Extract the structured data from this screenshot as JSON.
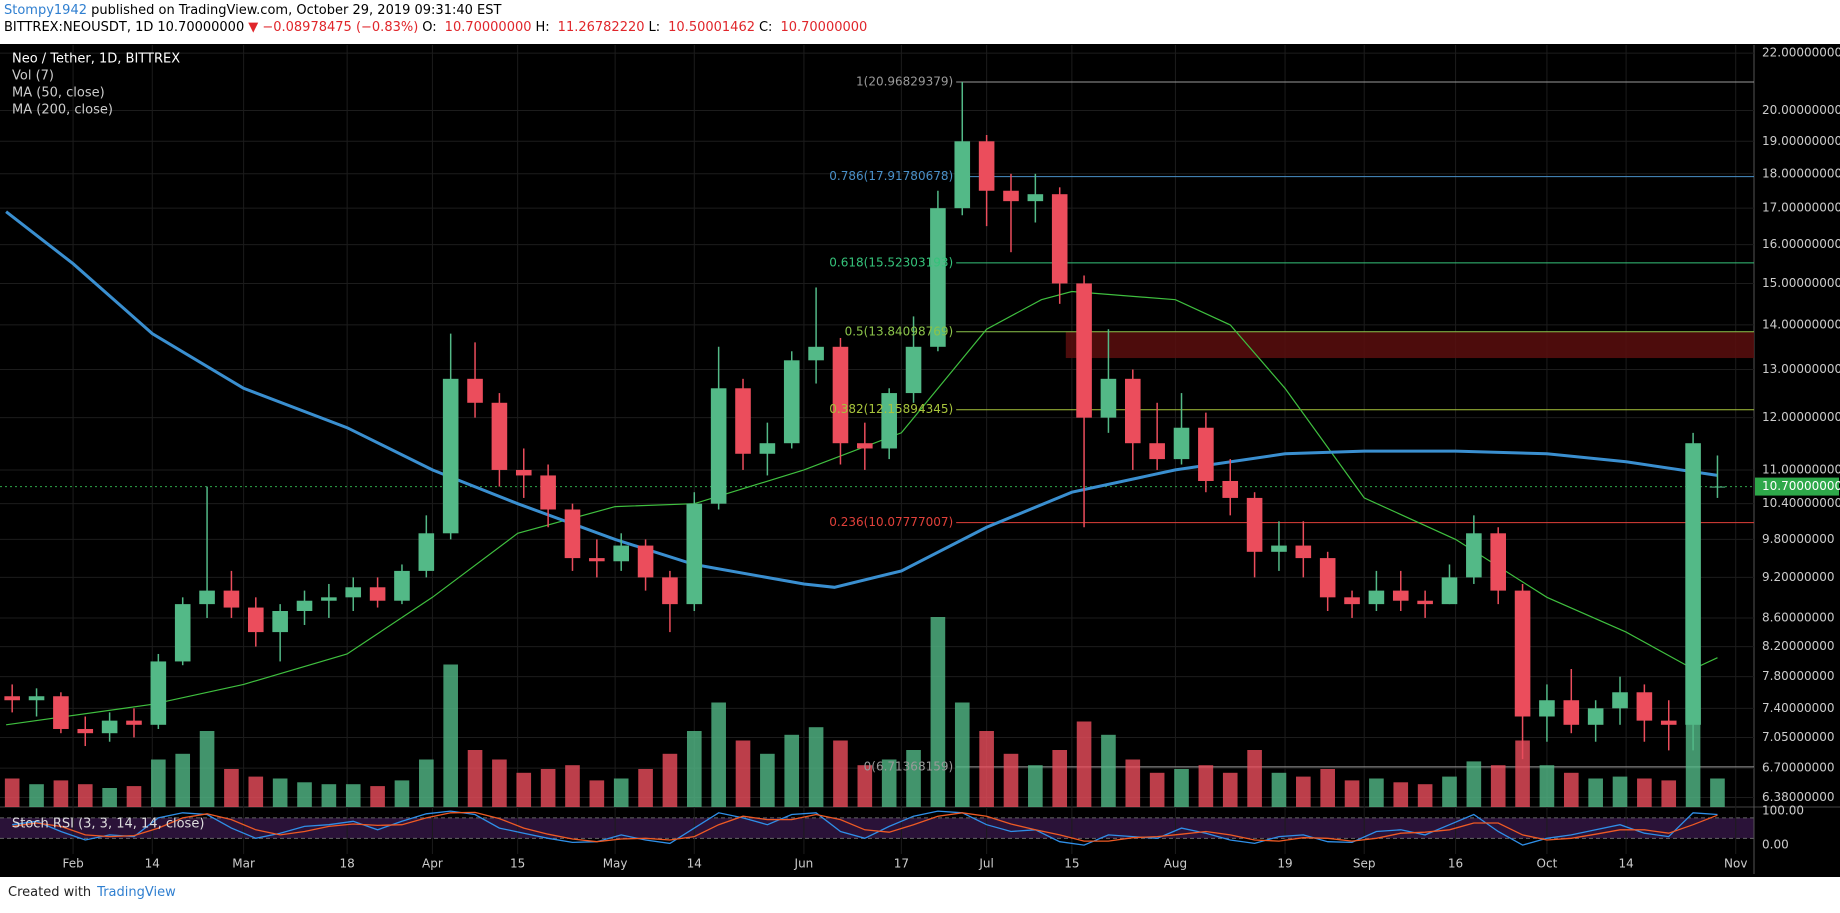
{
  "header": {
    "user": "Stompy1942",
    "published": " published on TradingView.com, October 29, 2019 09:31:40 EST",
    "line2": [
      {
        "text": "BITTREX:NEOUSDT, 1D",
        "color": "#000000"
      },
      {
        "text": "10.70000000",
        "color": "#000000"
      },
      {
        "text": "▼ −0.08978475 (−0.83%)",
        "color": "#e0262b"
      },
      {
        "text": "O:",
        "color": "#000000"
      },
      {
        "text": "10.70000000",
        "color": "#e0262b"
      },
      {
        "text": "H:",
        "color": "#000000"
      },
      {
        "text": "11.26782220",
        "color": "#e0262b"
      },
      {
        "text": "L:",
        "color": "#000000"
      },
      {
        "text": "10.50001462",
        "color": "#e0262b"
      },
      {
        "text": "C:",
        "color": "#000000"
      },
      {
        "text": "10.70000000",
        "color": "#e0262b"
      }
    ]
  },
  "chart_data": {
    "type": "candlestick",
    "legend": [
      "Neo / Tether, 1D, BITTREX",
      "Vol (7)",
      "MA (50, close)",
      "MA (200, close)"
    ],
    "log_scale": true,
    "grid": true,
    "xlim": [
      "2019-01-20",
      "2019-11-04"
    ],
    "ylim": [
      6.28,
      22.3
    ],
    "xticks": [
      {
        "value": "2019-02-01",
        "label": "Feb"
      },
      {
        "value": "2019-02-14",
        "label": "14"
      },
      {
        "value": "2019-03-01",
        "label": "Mar"
      },
      {
        "value": "2019-03-18",
        "label": "18"
      },
      {
        "value": "2019-04-01",
        "label": "Apr"
      },
      {
        "value": "2019-04-15",
        "label": "15"
      },
      {
        "value": "2019-05-01",
        "label": "May"
      },
      {
        "value": "2019-05-14",
        "label": "14"
      },
      {
        "value": "2019-06-01",
        "label": "Jun"
      },
      {
        "value": "2019-06-17",
        "label": "17"
      },
      {
        "value": "2019-07-01",
        "label": "Jul"
      },
      {
        "value": "2019-07-15",
        "label": "15"
      },
      {
        "value": "2019-08-01",
        "label": "Aug"
      },
      {
        "value": "2019-08-19",
        "label": "19"
      },
      {
        "value": "2019-09-01",
        "label": "Sep"
      },
      {
        "value": "2019-09-16",
        "label": "16"
      },
      {
        "value": "2019-10-01",
        "label": "Oct"
      },
      {
        "value": "2019-10-14",
        "label": "14"
      },
      {
        "value": "2019-11-01",
        "label": "Nov"
      }
    ],
    "yticks": [
      {
        "value": 22,
        "label": "22.00000000"
      },
      {
        "value": 20,
        "label": "20.00000000"
      },
      {
        "value": 19,
        "label": "19.00000000"
      },
      {
        "value": 18,
        "label": "18.00000000"
      },
      {
        "value": 17,
        "label": "17.00000000"
      },
      {
        "value": 16,
        "label": "16.00000000"
      },
      {
        "value": 15,
        "label": "15.00000000"
      },
      {
        "value": 14,
        "label": "14.00000000"
      },
      {
        "value": 13,
        "label": "13.00000000"
      },
      {
        "value": 12,
        "label": "12.00000000"
      },
      {
        "value": 11,
        "label": "11.00000000"
      },
      {
        "value": 10.4,
        "label": "10.40000000"
      },
      {
        "value": 9.8,
        "label": "9.80000000"
      },
      {
        "value": 9.2,
        "label": "9.20000000"
      },
      {
        "value": 8.6,
        "label": "8.60000000"
      },
      {
        "value": 8.2,
        "label": "8.20000000"
      },
      {
        "value": 7.8,
        "label": "7.80000000"
      },
      {
        "value": 7.4,
        "label": "7.40000000"
      },
      {
        "value": 7.05,
        "label": "7.05000000"
      },
      {
        "value": 6.7,
        "label": "6.70000000"
      },
      {
        "value": 6.38,
        "label": "6.38000000"
      }
    ],
    "up_color": "#53b987",
    "down_color": "#eb4d5c",
    "candles": {
      "x": [
        "2019-01-22",
        "2019-01-26",
        "2019-01-30",
        "2019-02-03",
        "2019-02-07",
        "2019-02-11",
        "2019-02-15",
        "2019-02-19",
        "2019-02-23",
        "2019-02-27",
        "2019-03-03",
        "2019-03-07",
        "2019-03-11",
        "2019-03-15",
        "2019-03-19",
        "2019-03-23",
        "2019-03-27",
        "2019-03-31",
        "2019-04-04",
        "2019-04-08",
        "2019-04-12",
        "2019-04-16",
        "2019-04-20",
        "2019-04-24",
        "2019-04-28",
        "2019-05-02",
        "2019-05-06",
        "2019-05-10",
        "2019-05-14",
        "2019-05-18",
        "2019-05-22",
        "2019-05-26",
        "2019-05-30",
        "2019-06-03",
        "2019-06-07",
        "2019-06-11",
        "2019-06-15",
        "2019-06-19",
        "2019-06-23",
        "2019-06-27",
        "2019-07-01",
        "2019-07-05",
        "2019-07-09",
        "2019-07-13",
        "2019-07-17",
        "2019-07-21",
        "2019-07-25",
        "2019-07-29",
        "2019-08-02",
        "2019-08-06",
        "2019-08-10",
        "2019-08-14",
        "2019-08-18",
        "2019-08-22",
        "2019-08-26",
        "2019-08-30",
        "2019-09-03",
        "2019-09-07",
        "2019-09-11",
        "2019-09-15",
        "2019-09-19",
        "2019-09-23",
        "2019-09-27",
        "2019-10-01",
        "2019-10-05",
        "2019-10-09",
        "2019-10-13",
        "2019-10-17",
        "2019-10-21",
        "2019-10-25",
        "2019-10-29"
      ],
      "open": [
        7.55,
        7.5,
        7.55,
        7.15,
        7.1,
        7.25,
        7.2,
        8.0,
        8.8,
        9.0,
        8.75,
        8.4,
        8.7,
        8.85,
        8.9,
        9.05,
        8.85,
        9.3,
        9.9,
        12.8,
        12.3,
        11.0,
        10.9,
        10.3,
        9.5,
        9.45,
        9.7,
        9.2,
        8.8,
        10.4,
        12.6,
        11.3,
        11.5,
        13.2,
        13.5,
        11.5,
        11.4,
        12.5,
        13.5,
        17.0,
        19.0,
        17.5,
        17.2,
        17.4,
        15.0,
        12.0,
        12.8,
        11.5,
        11.2,
        11.8,
        10.8,
        10.5,
        9.6,
        9.7,
        9.5,
        8.9,
        8.8,
        9.0,
        8.85,
        8.8,
        9.2,
        9.9,
        9.0,
        7.3,
        7.5,
        7.2,
        7.4,
        7.6,
        7.25,
        7.2,
        10.7
      ],
      "high": [
        7.7,
        7.65,
        7.6,
        7.3,
        7.35,
        7.4,
        8.1,
        8.9,
        10.7,
        9.3,
        8.9,
        8.8,
        9.0,
        9.1,
        9.2,
        9.2,
        9.4,
        10.2,
        13.8,
        13.6,
        12.5,
        11.4,
        11.1,
        10.4,
        9.8,
        9.9,
        9.8,
        9.3,
        10.6,
        13.5,
        12.8,
        11.9,
        13.4,
        14.9,
        13.7,
        11.9,
        12.6,
        14.2,
        17.5,
        20.96829379,
        19.2,
        18.0,
        18.0,
        17.6,
        15.2,
        13.9,
        13.0,
        12.3,
        12.5,
        12.1,
        11.2,
        10.6,
        10.1,
        10.1,
        9.6,
        9.0,
        9.3,
        9.3,
        9.0,
        9.4,
        10.2,
        10.0,
        9.1,
        7.7,
        7.9,
        7.5,
        7.8,
        7.7,
        7.5,
        11.7,
        11.2678222
      ],
      "low": [
        7.35,
        7.3,
        7.1,
        6.95,
        7.0,
        7.05,
        7.15,
        7.95,
        8.6,
        8.6,
        8.2,
        8.0,
        8.5,
        8.6,
        8.7,
        8.75,
        8.8,
        9.2,
        9.8,
        12.0,
        10.7,
        10.5,
        10.0,
        9.3,
        9.2,
        9.3,
        9.0,
        8.4,
        8.7,
        10.3,
        11.0,
        10.9,
        11.4,
        12.7,
        11.1,
        11.0,
        11.2,
        12.3,
        13.4,
        16.8,
        16.5,
        15.8,
        16.6,
        14.5,
        10.0,
        11.7,
        11.0,
        11.0,
        11.1,
        10.6,
        10.2,
        9.2,
        9.3,
        9.2,
        8.7,
        8.6,
        8.7,
        8.7,
        8.6,
        8.8,
        9.1,
        8.8,
        6.8,
        7.0,
        7.1,
        7.0,
        7.2,
        7.0,
        6.9,
        6.9,
        10.50001462
      ],
      "close": [
        7.5,
        7.55,
        7.15,
        7.1,
        7.25,
        7.2,
        8.0,
        8.8,
        9.0,
        8.75,
        8.4,
        8.7,
        8.85,
        8.9,
        9.05,
        8.85,
        9.3,
        9.9,
        12.8,
        12.3,
        11.0,
        10.9,
        10.3,
        9.5,
        9.45,
        9.7,
        9.2,
        8.8,
        10.4,
        12.6,
        11.3,
        11.5,
        13.2,
        13.5,
        11.5,
        11.4,
        12.5,
        13.5,
        17.0,
        19.0,
        17.5,
        17.2,
        17.4,
        15.0,
        12.0,
        12.8,
        11.5,
        11.2,
        11.8,
        10.8,
        10.5,
        9.6,
        9.7,
        9.5,
        8.9,
        8.8,
        9.0,
        8.85,
        8.8,
        9.2,
        9.9,
        9.0,
        7.3,
        7.5,
        7.2,
        7.4,
        7.6,
        7.25,
        7.2,
        11.5,
        10.7
      ]
    },
    "volume": [
      15,
      12,
      14,
      12,
      10,
      11,
      25,
      28,
      40,
      20,
      16,
      15,
      13,
      12,
      12,
      11,
      14,
      25,
      75,
      30,
      25,
      18,
      20,
      22,
      14,
      15,
      20,
      28,
      40,
      55,
      35,
      28,
      38,
      42,
      35,
      22,
      25,
      30,
      100,
      55,
      40,
      28,
      22,
      30,
      45,
      38,
      25,
      18,
      20,
      22,
      18,
      30,
      18,
      16,
      20,
      14,
      15,
      13,
      12,
      16,
      24,
      22,
      35,
      22,
      18,
      15,
      16,
      15,
      14,
      60,
      15
    ],
    "moving_averages": [
      {
        "name": "MA (50, close)",
        "color": "#3fbf3f",
        "width": 1.2,
        "x": [
          "2019-01-21",
          "2019-02-14",
          "2019-03-01",
          "2019-03-18",
          "2019-04-01",
          "2019-04-15",
          "2019-05-01",
          "2019-05-14",
          "2019-06-01",
          "2019-06-17",
          "2019-07-01",
          "2019-07-10",
          "2019-07-15",
          "2019-08-01",
          "2019-08-10",
          "2019-08-19",
          "2019-09-01",
          "2019-09-16",
          "2019-10-01",
          "2019-10-14",
          "2019-10-25",
          "2019-10-29"
        ],
        "values": [
          7.2,
          7.45,
          7.7,
          8.1,
          8.9,
          9.9,
          10.35,
          10.4,
          11.0,
          11.7,
          13.9,
          14.6,
          14.8,
          14.6,
          14.0,
          12.6,
          10.5,
          9.8,
          8.9,
          8.4,
          7.9,
          8.05
        ]
      },
      {
        "name": "MA (200, close)",
        "color": "#3a8fd0",
        "width": 3,
        "x": [
          "2019-01-21",
          "2019-02-01",
          "2019-02-14",
          "2019-03-01",
          "2019-03-18",
          "2019-04-01",
          "2019-04-15",
          "2019-05-01",
          "2019-05-14",
          "2019-06-01",
          "2019-06-06",
          "2019-06-17",
          "2019-07-01",
          "2019-07-15",
          "2019-08-01",
          "2019-08-19",
          "2019-09-01",
          "2019-09-16",
          "2019-10-01",
          "2019-10-14",
          "2019-10-29"
        ],
        "values": [
          16.9,
          15.5,
          13.8,
          12.6,
          11.8,
          11.0,
          10.4,
          9.8,
          9.4,
          9.1,
          9.05,
          9.3,
          10.0,
          10.6,
          11.0,
          11.3,
          11.35,
          11.35,
          11.3,
          11.15,
          10.9
        ]
      }
    ],
    "fib": {
      "x0": "2019-06-26",
      "levels": [
        {
          "price": 20.96829379,
          "label": "1(20.96829379)",
          "color": "#9a9a9a"
        },
        {
          "price": 17.91780678,
          "label": "0.786(17.91780678)",
          "color": "#4a90c8"
        },
        {
          "price": 15.52303193,
          "label": "0.618(15.52303193)",
          "color": "#35c27a"
        },
        {
          "price": 13.84098769,
          "label": "0.5(13.84098769)",
          "color": "#8bc34a"
        },
        {
          "price": 12.15894345,
          "label": "0.382(12.15894345)",
          "color": "#a8c43c"
        },
        {
          "price": 10.07777007,
          "label": "0.236(10.07777007)",
          "color": "#e0403a"
        },
        {
          "price": 6.71368159,
          "label": "0(6.71368159)",
          "color": "#9a9a9a"
        }
      ]
    },
    "zone": {
      "x0": "2019-07-14",
      "from": 13.25,
      "to": 13.85,
      "color": "#5a0e0e"
    },
    "last_price": {
      "value": 10.7,
      "label": "10.70000000",
      "color": "#2ea84a"
    },
    "stoch_rsi": {
      "title": "Stoch RSI (3, 3, 14, 14, close)",
      "ylim": [
        -26,
        112
      ],
      "yticks": [
        {
          "value": 100,
          "label": "100.00"
        },
        {
          "value": 0,
          "label": "0.00"
        }
      ],
      "band": [
        20,
        80
      ],
      "series": [
        {
          "name": "K",
          "color": "#2f8fe8",
          "values": [
            60,
            70,
            40,
            15,
            30,
            25,
            80,
            95,
            90,
            50,
            20,
            35,
            55,
            60,
            70,
            45,
            70,
            92,
            100,
            90,
            50,
            35,
            20,
            8,
            10,
            30,
            15,
            5,
            50,
            95,
            80,
            60,
            90,
            95,
            40,
            20,
            55,
            85,
            100,
            95,
            60,
            40,
            45,
            10,
            0,
            30,
            25,
            20,
            50,
            35,
            15,
            5,
            25,
            30,
            10,
            8,
            40,
            45,
            30,
            60,
            90,
            40,
            0,
            20,
            30,
            45,
            60,
            35,
            25,
            95,
            90
          ]
        },
        {
          "name": "D",
          "color": "#ee5a24",
          "values": [
            55,
            65,
            55,
            30,
            25,
            28,
            50,
            80,
            92,
            75,
            45,
            30,
            40,
            55,
            62,
            58,
            60,
            80,
            95,
            96,
            78,
            50,
            32,
            18,
            10,
            18,
            20,
            15,
            25,
            60,
            85,
            75,
            75,
            90,
            75,
            45,
            38,
            60,
            85,
            95,
            85,
            62,
            45,
            30,
            12,
            12,
            22,
            25,
            32,
            40,
            30,
            15,
            12,
            22,
            20,
            12,
            20,
            35,
            38,
            45,
            65,
            65,
            30,
            15,
            20,
            32,
            45,
            45,
            35,
            60,
            88
          ]
        }
      ]
    }
  },
  "footer": {
    "created": "Created with",
    "brand": "TradingView"
  }
}
